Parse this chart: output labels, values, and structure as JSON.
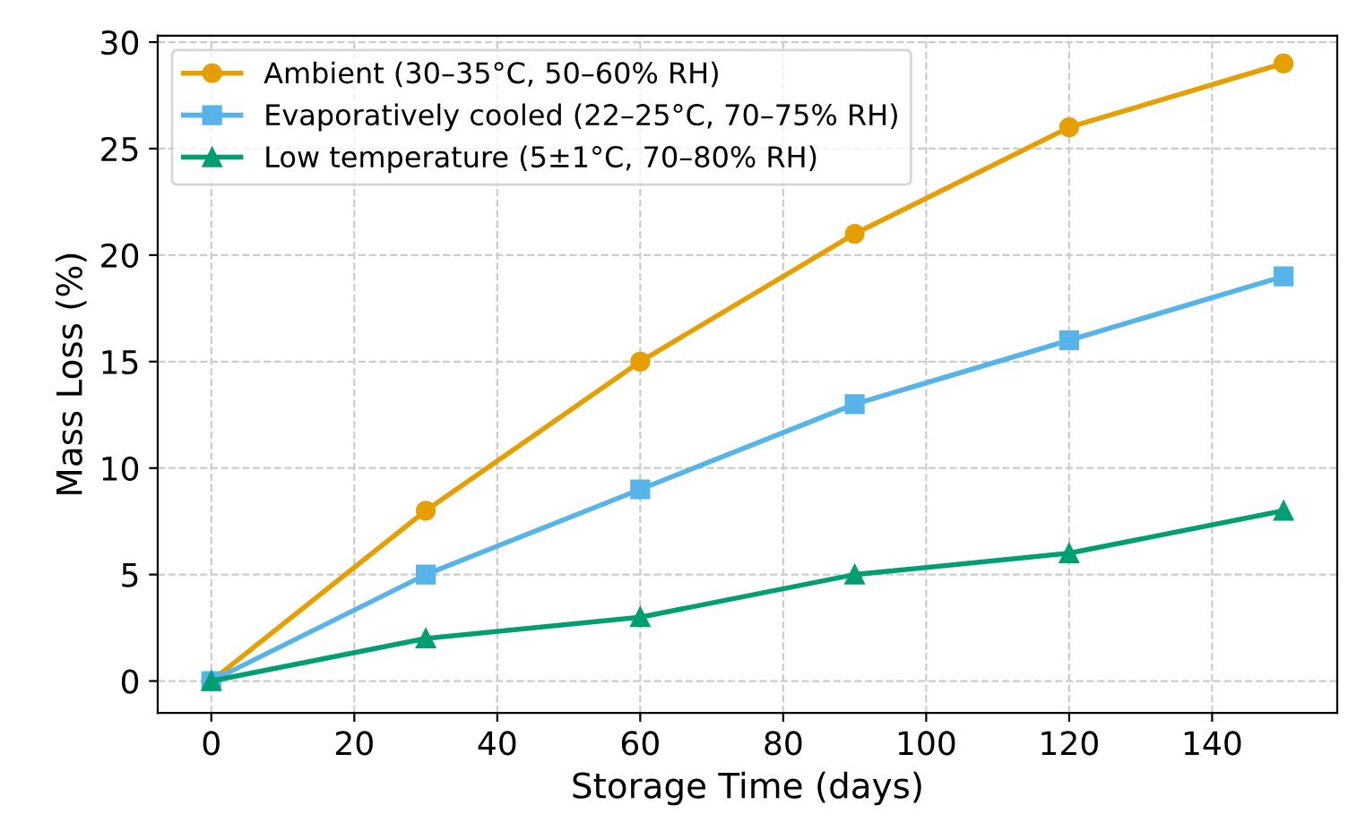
{
  "chart_data": {
    "type": "line",
    "xlabel": "Storage Time (days)",
    "ylabel": "Mass Loss (%)",
    "x": [
      0,
      30,
      60,
      90,
      120,
      150
    ],
    "series": [
      {
        "name": "Ambient (30–35°C, 50–60% RH)",
        "color": "#e69f00",
        "marker": "circle",
        "values": [
          0,
          8,
          15,
          21,
          26,
          29
        ]
      },
      {
        "name": "Evaporatively cooled (22–25°C, 70–75% RH)",
        "color": "#56b4e9",
        "marker": "square",
        "values": [
          0,
          5,
          9,
          13,
          16,
          19
        ]
      },
      {
        "name": "Low temperature (5±1°C, 70–80% RH)",
        "color": "#009e73",
        "marker": "triangle",
        "values": [
          0,
          2,
          3,
          5,
          6,
          8
        ]
      }
    ],
    "xlim": [
      -7.5,
      157.5
    ],
    "xticks": [
      0,
      20,
      40,
      60,
      80,
      100,
      120,
      140
    ],
    "ylim": [
      -1.5,
      30.3
    ],
    "yticks": [
      0,
      5,
      10,
      15,
      20,
      25,
      30
    ],
    "grid": true,
    "legend": "top left",
    "line_style": "solid"
  }
}
